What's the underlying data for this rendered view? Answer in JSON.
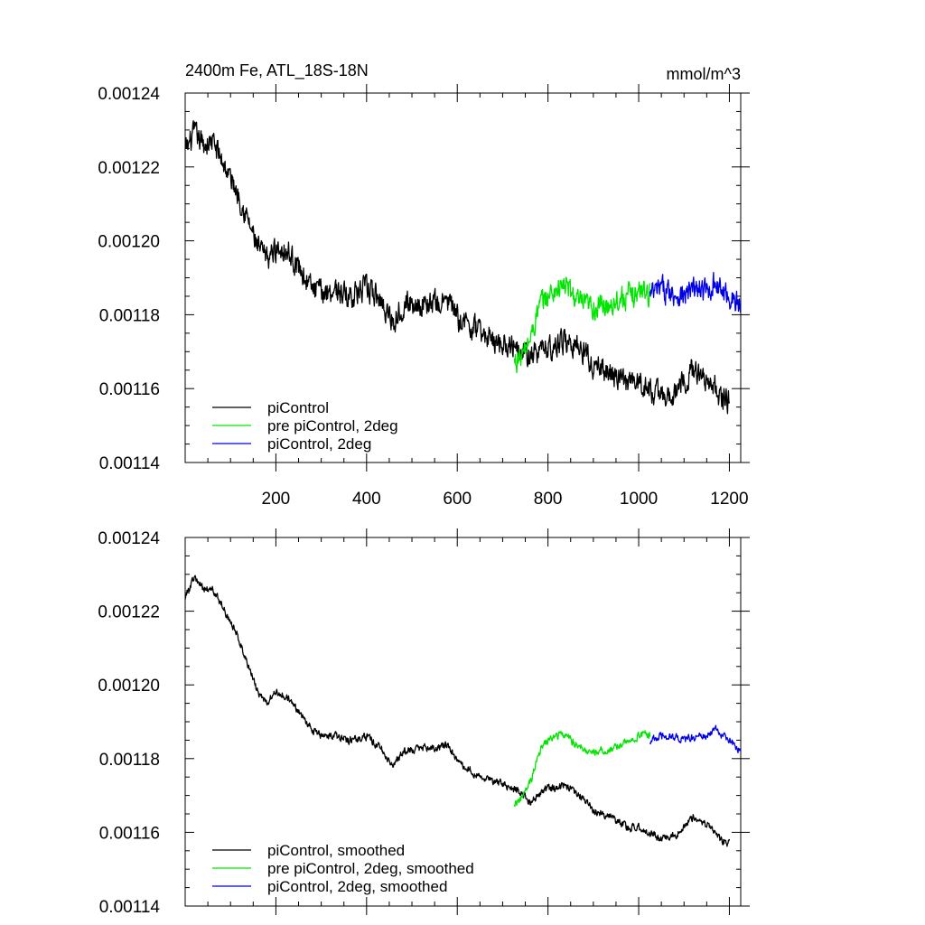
{
  "chart_data": [
    {
      "type": "line",
      "title": "2400m Fe, ATL_18S-18N",
      "units": "mmol/m^3",
      "xlim": [
        0,
        1225
      ],
      "ylim": [
        0.00114,
        0.00124
      ],
      "yticks": [
        "0.00114",
        "0.00116",
        "0.00118",
        "0.00120",
        "0.00122",
        "0.00124"
      ],
      "xticks": [
        "200",
        "400",
        "600",
        "800",
        "1000",
        "1200"
      ],
      "legend_position": "bottom-left",
      "grid": false,
      "noise": 2.8e-06,
      "series": [
        {
          "name": "piControl",
          "color": "#000000",
          "x": [
            0,
            20,
            40,
            60,
            80,
            100,
            120,
            140,
            160,
            180,
            200,
            220,
            250,
            280,
            300,
            330,
            360,
            400,
            430,
            460,
            480,
            520,
            560,
            580,
            600,
            640,
            680,
            720,
            740,
            760,
            780,
            800,
            820,
            840,
            860,
            880,
            900,
            940,
            980,
            1000,
            1020,
            1050,
            1080,
            1100,
            1120,
            1150,
            1170,
            1180,
            1200
          ],
          "y": [
            0.001224,
            0.001229,
            0.001226,
            0.001227,
            0.001222,
            0.001217,
            0.001212,
            0.001205,
            0.001198,
            0.001195,
            0.001198,
            0.001198,
            0.001193,
            0.001187,
            0.001186,
            0.001187,
            0.001185,
            0.001187,
            0.001184,
            0.001178,
            0.001183,
            0.001183,
            0.001183,
            0.001184,
            0.001179,
            0.001176,
            0.001173,
            0.001172,
            0.001172,
            0.001168,
            0.00117,
            0.001171,
            0.001172,
            0.001173,
            0.001172,
            0.00117,
            0.001166,
            0.001164,
            0.001161,
            0.001162,
            0.00116,
            0.001158,
            0.001159,
            0.001162,
            0.001165,
            0.001163,
            0.00116,
            0.001157,
            0.001157
          ]
        },
        {
          "name": "pre piControl, 2deg",
          "color": "#00e600",
          "x": [
            725,
            735,
            745,
            755,
            765,
            775,
            785,
            800,
            820,
            840,
            850,
            870,
            890,
            920,
            950,
            980,
            1000,
            1010,
            1025
          ],
          "y": [
            0.001167,
            0.001168,
            0.001169,
            0.001172,
            0.001175,
            0.00118,
            0.001183,
            0.001185,
            0.001187,
            0.001188,
            0.001186,
            0.001183,
            0.001182,
            0.001182,
            0.001184,
            0.001185,
            0.001186,
            0.001187,
            0.001186
          ]
        },
        {
          "name": "piControl, 2deg",
          "color": "#0000e6",
          "x": [
            1025,
            1050,
            1075,
            1100,
            1125,
            1150,
            1170,
            1185,
            1200,
            1225
          ],
          "y": [
            0.001185,
            0.001187,
            0.001186,
            0.001185,
            0.001187,
            0.001186,
            0.001189,
            0.001186,
            0.001185,
            0.001182
          ]
        }
      ]
    },
    {
      "type": "line",
      "xlim": [
        0,
        1225
      ],
      "ylim": [
        0.00114,
        0.00124
      ],
      "yticks": [
        "0.00114",
        "0.00116",
        "0.00118",
        "0.00120",
        "0.00122",
        "0.00124"
      ],
      "xticks": [],
      "legend_position": "bottom-left",
      "grid": false,
      "noise": 9e-07,
      "series": [
        {
          "name": "piControl, smoothed",
          "color": "#000000",
          "x": [
            0,
            20,
            40,
            60,
            80,
            100,
            120,
            140,
            160,
            180,
            200,
            220,
            250,
            280,
            300,
            330,
            360,
            400,
            430,
            460,
            480,
            520,
            560,
            580,
            600,
            640,
            680,
            720,
            740,
            760,
            780,
            800,
            820,
            840,
            860,
            880,
            900,
            940,
            980,
            1000,
            1020,
            1050,
            1080,
            1100,
            1120,
            1150,
            1170,
            1180,
            1200
          ],
          "y": [
            0.001224,
            0.001229,
            0.001226,
            0.001226,
            0.001222,
            0.001217,
            0.001212,
            0.001205,
            0.001198,
            0.001195,
            0.001198,
            0.001197,
            0.001193,
            0.001188,
            0.001186,
            0.001186,
            0.001185,
            0.001186,
            0.001183,
            0.001178,
            0.001182,
            0.001183,
            0.001183,
            0.001184,
            0.001179,
            0.001176,
            0.001174,
            0.001172,
            0.001171,
            0.001168,
            0.00117,
            0.001172,
            0.001172,
            0.001173,
            0.001171,
            0.001169,
            0.001166,
            0.001164,
            0.001161,
            0.001162,
            0.00116,
            0.001158,
            0.001159,
            0.001162,
            0.001164,
            0.001162,
            0.00116,
            0.001158,
            0.001157
          ]
        },
        {
          "name": "pre piControl, 2deg, smoothed",
          "color": "#00e600",
          "x": [
            725,
            740,
            755,
            765,
            775,
            785,
            800,
            820,
            840,
            850,
            870,
            890,
            920,
            950,
            980,
            1000,
            1010,
            1025
          ],
          "y": [
            0.001168,
            0.001169,
            0.001172,
            0.001175,
            0.00118,
            0.001183,
            0.001185,
            0.001186,
            0.001187,
            0.001185,
            0.001183,
            0.001182,
            0.001182,
            0.001183,
            0.001185,
            0.001186,
            0.001187,
            0.001186
          ]
        },
        {
          "name": "piControl, 2deg, smoothed",
          "color": "#0000e6",
          "x": [
            1025,
            1050,
            1075,
            1100,
            1125,
            1150,
            1170,
            1185,
            1200,
            1225
          ],
          "y": [
            0.001185,
            0.001186,
            0.001186,
            0.001185,
            0.001186,
            0.001186,
            0.001188,
            0.001186,
            0.001185,
            0.001182
          ]
        }
      ]
    }
  ]
}
